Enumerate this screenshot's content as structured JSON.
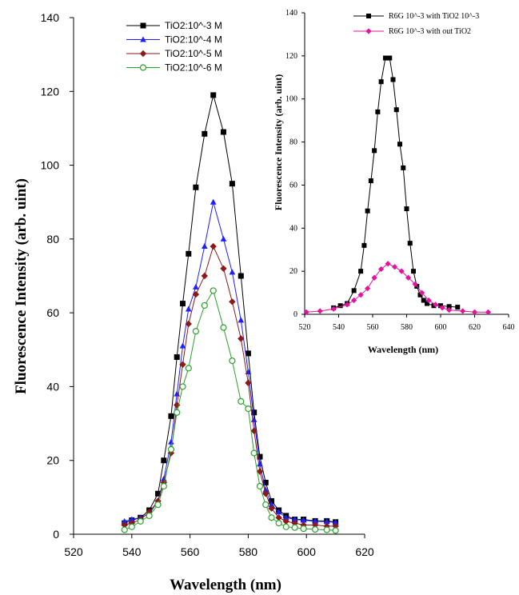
{
  "chart_data": [
    {
      "type": "line",
      "title": "",
      "xlabel": "Wavelength (nm)",
      "ylabel": "Fluorescence Intensity (arb. uint)",
      "xlim": [
        520,
        620
      ],
      "ylim": [
        0,
        140
      ],
      "xticks": [
        520,
        540,
        560,
        580,
        600,
        620
      ],
      "yticks": [
        0,
        20,
        40,
        60,
        80,
        100,
        120,
        140
      ],
      "grid": false,
      "legend": "top-center",
      "series": [
        {
          "name": "TiO2:10^-3 M",
          "color": "#000000",
          "marker": "square-filled",
          "x": [
            537.5,
            540,
            543,
            546,
            549,
            551,
            553.5,
            555.5,
            557.5,
            559.5,
            562,
            565,
            568,
            571.5,
            574.5,
            577.5,
            580,
            582,
            584,
            586,
            588,
            590.5,
            593,
            596,
            599,
            603,
            607,
            610
          ],
          "y": [
            3,
            3.8,
            4.5,
            6.5,
            11,
            20,
            32,
            48,
            62.5,
            76,
            94,
            108.5,
            119,
            109,
            95,
            70,
            49,
            33,
            21,
            14,
            9,
            6.5,
            5,
            4,
            4,
            3.6,
            3.6,
            3.3
          ]
        },
        {
          "name": "TiO2:10^-4 M",
          "color": "#1f1fff",
          "marker": "triangle-filled",
          "x": [
            537.5,
            540,
            543,
            546,
            549,
            551,
            553.5,
            555.5,
            557.5,
            559.5,
            562,
            565,
            568,
            571.5,
            574.5,
            577.5,
            580,
            582,
            584,
            586,
            588,
            590.5,
            593,
            596,
            599,
            603,
            607,
            610
          ],
          "y": [
            3.5,
            4,
            4.5,
            5.5,
            9,
            15,
            25,
            38,
            51,
            61,
            67,
            78,
            90,
            80,
            71,
            58,
            44,
            31,
            19,
            12,
            8,
            6,
            4.5,
            4,
            3.8,
            3.5,
            3.4,
            3.2
          ]
        },
        {
          "name": "TiO2:10^-5 M",
          "color": "#8b1a1a",
          "marker": "diamond-filled",
          "x": [
            537.5,
            540,
            543,
            546,
            549,
            551,
            553.5,
            555.5,
            557.5,
            559.5,
            562,
            565,
            568,
            571.5,
            574.5,
            577.5,
            580,
            582,
            584,
            586,
            588,
            590.5,
            593,
            596,
            599,
            603,
            607,
            610
          ],
          "y": [
            2.5,
            3,
            4,
            6,
            9,
            14,
            22,
            35,
            46,
            57,
            65,
            70,
            78,
            72,
            63,
            53,
            41,
            28,
            17,
            11,
            7,
            4.5,
            3.5,
            3,
            2.5,
            2.5,
            2.2,
            2.2
          ]
        },
        {
          "name": "TiO2:10^-6 M",
          "color": "#2ca02c",
          "marker": "circle-open",
          "x": [
            537.5,
            540,
            543,
            546,
            549,
            551,
            553.5,
            555.5,
            557.5,
            559.5,
            562,
            565,
            568,
            571.5,
            574.5,
            577.5,
            580,
            582,
            584,
            586,
            588,
            590.5,
            593,
            596,
            599,
            603,
            607,
            610
          ],
          "y": [
            1.2,
            2,
            3.5,
            5,
            8,
            13,
            23,
            33,
            40,
            45,
            55,
            62,
            66,
            56,
            47,
            36,
            34,
            22,
            13,
            8,
            4.5,
            3,
            2,
            1.8,
            1.5,
            1.3,
            1.2,
            1
          ]
        }
      ]
    },
    {
      "type": "line",
      "title": "",
      "xlabel": "Wavelength (nm)",
      "ylabel": "Fluorescence Intensity (arb. uint)",
      "xlim": [
        520,
        640
      ],
      "ylim": [
        0,
        140
      ],
      "xticks": [
        520,
        540,
        560,
        580,
        600,
        620,
        640
      ],
      "yticks": [
        0,
        20,
        40,
        60,
        80,
        100,
        120,
        140
      ],
      "grid": false,
      "legend": "top-right",
      "series": [
        {
          "name": "R6G 10^-3 with TiO2 10^-3",
          "color": "#000000",
          "marker": "square-filled",
          "x": [
            537,
            541,
            545,
            549,
            553,
            555,
            557,
            559,
            561,
            563,
            565,
            567.5,
            570,
            572,
            574,
            576,
            578,
            580,
            582,
            584,
            586,
            588,
            590,
            592,
            596,
            600,
            605,
            610
          ],
          "y": [
            3,
            4,
            5,
            11,
            20,
            32,
            48,
            62,
            76,
            94,
            108,
            119,
            119,
            109,
            95,
            79,
            68,
            49,
            33,
            20,
            13,
            9,
            6.5,
            5,
            4,
            4,
            3.6,
            3.3
          ]
        },
        {
          "name": "R6G 10^-3 with out TiO2",
          "color": "#e0149e",
          "marker": "diamond-filled",
          "x": [
            521,
            529,
            537,
            545,
            549,
            553,
            557,
            561,
            565,
            569,
            573,
            577,
            581,
            585,
            589,
            593,
            597,
            601,
            605,
            613,
            620,
            628
          ],
          "y": [
            1,
            1.5,
            2.5,
            4.5,
            6.5,
            9,
            12,
            17,
            21,
            23.5,
            22,
            20,
            17,
            14,
            10,
            6.5,
            4.5,
            3,
            2,
            1.5,
            1,
            1
          ]
        }
      ]
    }
  ]
}
